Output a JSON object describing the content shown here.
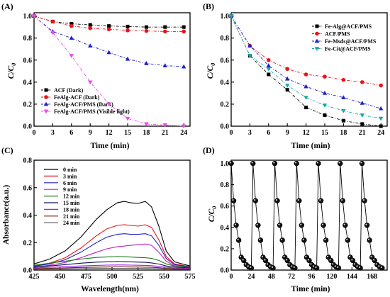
{
  "chart_data": [
    {
      "panel": "(A)",
      "type": "line",
      "xlabel": "Time (min)",
      "ylabel": "C/C0",
      "xlim": [
        0,
        25
      ],
      "ylim": [
        0,
        1.03
      ],
      "xticks": [
        0,
        3,
        6,
        9,
        12,
        15,
        18,
        21,
        24
      ],
      "yticks": [
        0.0,
        0.2,
        0.4,
        0.6,
        0.8,
        1.0
      ],
      "legend_position": "bottom-left",
      "series": [
        {
          "name": "ACF (Dark)",
          "color": "#000000",
          "marker": "square",
          "dash": "4,2,1,2",
          "x": [
            0,
            3,
            6,
            9,
            12,
            15,
            18,
            21,
            24
          ],
          "y": [
            1.0,
            0.95,
            0.93,
            0.92,
            0.91,
            0.905,
            0.9,
            0.9,
            0.9
          ]
        },
        {
          "name": "FeAlg-ACF (Dark)",
          "color": "#e8141c",
          "marker": "circle",
          "dash": "4,2,1,2",
          "x": [
            0,
            3,
            6,
            9,
            12,
            15,
            18,
            21,
            24
          ],
          "y": [
            1.0,
            0.95,
            0.91,
            0.89,
            0.88,
            0.87,
            0.865,
            0.86,
            0.86
          ]
        },
        {
          "name": "FeAlg-ACF/PMS (Dark)",
          "color": "#2020c8",
          "marker": "triangle-up",
          "dash": "4,2,1,2",
          "x": [
            0,
            3,
            6,
            9,
            12,
            15,
            18,
            21,
            24
          ],
          "y": [
            1.0,
            0.86,
            0.8,
            0.73,
            0.67,
            0.61,
            0.57,
            0.55,
            0.54
          ]
        },
        {
          "name": "FeAlg-ACF/PMS (Visible light)",
          "color": "#e64de6",
          "marker": "triangle-down",
          "dash": "4,2,1,2",
          "x": [
            0,
            3,
            6,
            9,
            12,
            15,
            18,
            21,
            24
          ],
          "y": [
            1.0,
            0.85,
            0.64,
            0.4,
            0.2,
            0.07,
            0.02,
            0.01,
            0.0
          ]
        }
      ]
    },
    {
      "panel": "(B)",
      "type": "line",
      "xlabel": "Time (min)",
      "ylabel": "C/C0",
      "xlim": [
        0,
        25
      ],
      "ylim": [
        0,
        1.03
      ],
      "xticks": [
        0,
        3,
        6,
        9,
        12,
        15,
        18,
        21,
        24
      ],
      "yticks": [
        0.0,
        0.2,
        0.4,
        0.6,
        0.8,
        1.0
      ],
      "legend_position": "top-right",
      "series": [
        {
          "name": "Fe-Alg@ACF/PMS",
          "color": "#000000",
          "marker": "square",
          "dash": "4,2,1,2",
          "x": [
            0,
            3,
            6,
            9,
            12,
            15,
            18,
            21,
            24
          ],
          "y": [
            1.0,
            0.64,
            0.47,
            0.33,
            0.17,
            0.1,
            0.05,
            0.02,
            0.0
          ]
        },
        {
          "name": "ACF/PMS",
          "color": "#e8141c",
          "marker": "circle",
          "dash": "4,2,1,2",
          "x": [
            0,
            3,
            6,
            9,
            12,
            15,
            18,
            21,
            24
          ],
          "y": [
            1.0,
            0.73,
            0.6,
            0.52,
            0.47,
            0.45,
            0.42,
            0.4,
            0.37
          ]
        },
        {
          "name": "Fe-Msds@ACF/PMS",
          "color": "#2020c8",
          "marker": "triangle-up",
          "dash": "4,2,1,2",
          "x": [
            0,
            3,
            6,
            9,
            12,
            15,
            18,
            21,
            24
          ],
          "y": [
            1.0,
            0.73,
            0.55,
            0.43,
            0.36,
            0.3,
            0.26,
            0.21,
            0.16
          ]
        },
        {
          "name": "Fe-Cit@ACF/PMS",
          "color": "#1aa8a8",
          "marker": "triangle-down",
          "dash": "4,2,1,2",
          "x": [
            0,
            3,
            6,
            9,
            12,
            15,
            18,
            21,
            24
          ],
          "y": [
            1.0,
            0.64,
            0.52,
            0.37,
            0.26,
            0.19,
            0.14,
            0.1,
            0.07
          ]
        }
      ]
    },
    {
      "panel": "(C)",
      "type": "line",
      "xlabel": "Wavelength(nm)",
      "ylabel": "Absorbance(a.u.)",
      "xlim": [
        425,
        575
      ],
      "ylim": [
        0,
        0.8
      ],
      "xticks": [
        425,
        450,
        475,
        500,
        525,
        550,
        575
      ],
      "yticks": [
        0.0,
        0.2,
        0.4,
        0.6,
        0.8
      ],
      "legend_position": "top-left",
      "x": [
        425,
        440,
        455,
        470,
        485,
        495,
        505,
        512,
        518,
        525,
        532,
        538,
        545,
        552,
        560,
        575
      ],
      "series": [
        {
          "name": "0 min",
          "color": "#000000",
          "y": [
            0.045,
            0.08,
            0.14,
            0.24,
            0.37,
            0.44,
            0.49,
            0.5,
            0.49,
            0.485,
            0.5,
            0.46,
            0.32,
            0.14,
            0.06,
            0.03
          ]
        },
        {
          "name": "3 min",
          "color": "#e8141c",
          "y": [
            0.03,
            0.05,
            0.09,
            0.16,
            0.25,
            0.3,
            0.325,
            0.33,
            0.325,
            0.32,
            0.33,
            0.31,
            0.22,
            0.1,
            0.045,
            0.025
          ]
        },
        {
          "name": "6 min",
          "color": "#2020c8",
          "y": [
            0.028,
            0.045,
            0.075,
            0.13,
            0.2,
            0.24,
            0.26,
            0.265,
            0.26,
            0.26,
            0.265,
            0.25,
            0.18,
            0.085,
            0.04,
            0.022
          ]
        },
        {
          "name": "9 min",
          "color": "#c020c0",
          "y": [
            0.022,
            0.035,
            0.055,
            0.09,
            0.13,
            0.155,
            0.17,
            0.175,
            0.18,
            0.185,
            0.19,
            0.18,
            0.13,
            0.065,
            0.032,
            0.02
          ]
        },
        {
          "name": "12 min",
          "color": "#1a7a1a",
          "y": [
            0.035,
            0.05,
            0.065,
            0.08,
            0.092,
            0.096,
            0.098,
            0.097,
            0.095,
            0.092,
            0.09,
            0.085,
            0.07,
            0.045,
            0.03,
            0.02
          ]
        },
        {
          "name": "15 min",
          "color": "#101060",
          "y": [
            0.02,
            0.03,
            0.04,
            0.05,
            0.058,
            0.06,
            0.062,
            0.061,
            0.06,
            0.058,
            0.056,
            0.052,
            0.044,
            0.03,
            0.022,
            0.015
          ]
        },
        {
          "name": "18 min",
          "color": "#a020f0",
          "y": [
            0.015,
            0.02,
            0.025,
            0.03,
            0.034,
            0.036,
            0.037,
            0.037,
            0.036,
            0.035,
            0.034,
            0.032,
            0.027,
            0.02,
            0.015,
            0.012
          ]
        },
        {
          "name": "21 min",
          "color": "#7a1a1a",
          "y": [
            0.01,
            0.013,
            0.016,
            0.019,
            0.021,
            0.022,
            0.023,
            0.023,
            0.022,
            0.022,
            0.021,
            0.02,
            0.017,
            0.013,
            0.01,
            0.008
          ]
        },
        {
          "name": "24 min",
          "color": "#555555",
          "y": [
            0.006,
            0.008,
            0.009,
            0.011,
            0.012,
            0.013,
            0.013,
            0.013,
            0.013,
            0.013,
            0.012,
            0.011,
            0.01,
            0.008,
            0.006,
            0.005
          ]
        }
      ]
    },
    {
      "panel": "(D)",
      "type": "scatter",
      "xlabel": "Time (min)",
      "ylabel": "C/C0",
      "xlim": [
        0,
        186
      ],
      "ylim": [
        0,
        1.03
      ],
      "xticks": [
        0,
        24,
        48,
        72,
        96,
        120,
        144,
        168
      ],
      "yticks": [
        0.0,
        0.2,
        0.4,
        0.6,
        0.8,
        1.0
      ],
      "cycles": 7,
      "cycle_length_min": 26,
      "cycle_times_min": [
        0,
        3,
        6,
        9,
        12,
        15,
        18,
        21,
        24
      ],
      "cycle_values": [
        1.0,
        0.65,
        0.42,
        0.28,
        0.12,
        0.09,
        0.05,
        0.03,
        0.02
      ]
    }
  ],
  "panel_labels": {
    "a": "(A)",
    "b": "(B)",
    "c": "(C)",
    "d": "(D)"
  },
  "axis_text": {
    "time": "Time (min)",
    "wavelength": "Wavelength(nm)",
    "absorbance": "Absorbance(a.u.)",
    "cc0_main": "C/C",
    "cc0_sub": "0"
  }
}
